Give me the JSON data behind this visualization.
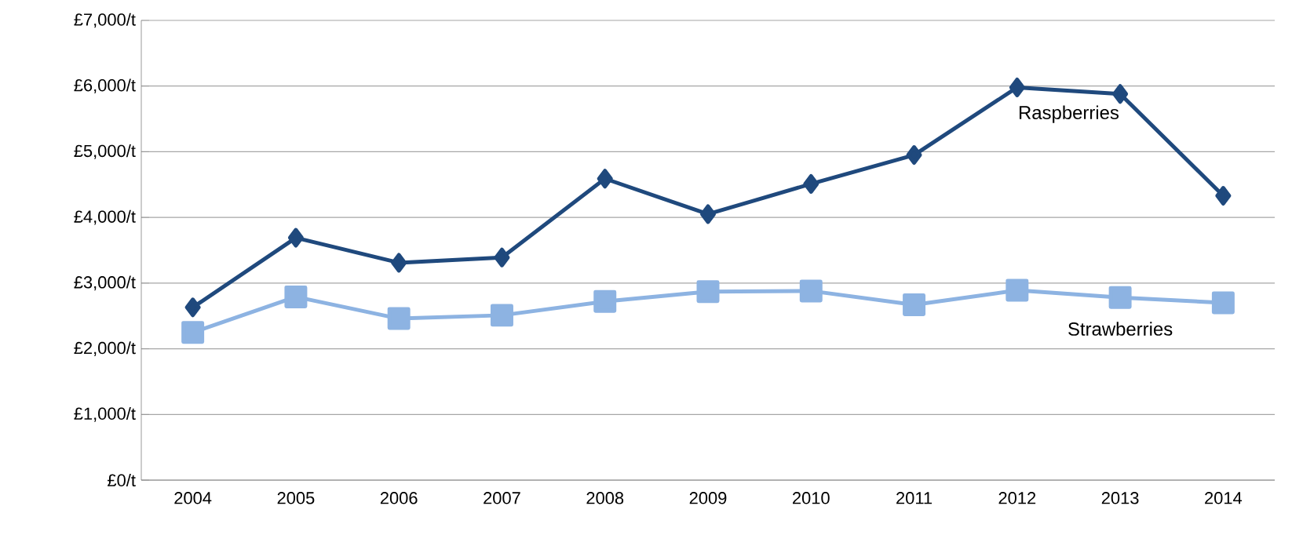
{
  "chart_data": {
    "type": "line",
    "categories": [
      "2004",
      "2005",
      "2006",
      "2007",
      "2008",
      "2009",
      "2010",
      "2011",
      "2012",
      "2013",
      "2014"
    ],
    "series": [
      {
        "name": "Raspberries",
        "color": "#1f497d",
        "marker": "diamond",
        "values": [
          2630,
          3690,
          3310,
          3390,
          4590,
          4050,
          4510,
          4950,
          5980,
          5880,
          4330
        ]
      },
      {
        "name": "Strawberries",
        "color": "#8db3e2",
        "marker": "square",
        "values": [
          2250,
          2790,
          2460,
          2510,
          2720,
          2870,
          2880,
          2670,
          2890,
          2780,
          2700
        ]
      }
    ],
    "ylim": [
      0,
      7000
    ],
    "yticks": [
      {
        "value": 0,
        "label": "£0/t"
      },
      {
        "value": 1000,
        "label": "£1,000/t"
      },
      {
        "value": 2000,
        "label": "£2,000/t"
      },
      {
        "value": 3000,
        "label": "£3,000/t"
      },
      {
        "value": 4000,
        "label": "£4,000/t"
      },
      {
        "value": 5000,
        "label": "£5,000/t"
      },
      {
        "value": 6000,
        "label": "£6,000/t"
      },
      {
        "value": 7000,
        "label": "£7,000/t"
      }
    ],
    "grid": "y",
    "legend": false,
    "line_style": "solid"
  }
}
